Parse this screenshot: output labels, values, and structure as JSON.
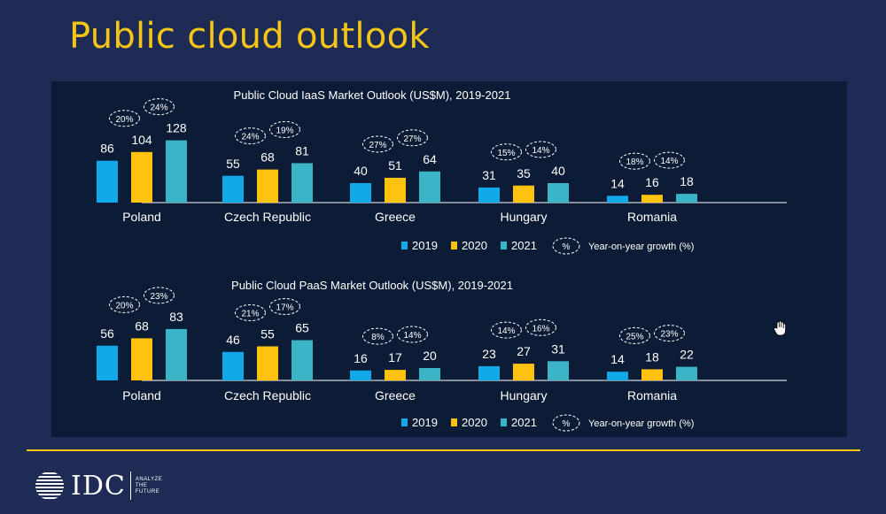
{
  "slide_title": "Public cloud outlook",
  "logo": {
    "name": "IDC",
    "tagline": [
      "ANALYZE",
      "THE",
      "FUTURE"
    ]
  },
  "colors": {
    "background": "#1d2b55",
    "panel": "#0d1c36",
    "title": "#f5c518",
    "2019": "#12a9ea",
    "2020": "#ffc20e",
    "2021": "#3bb4c7"
  },
  "chart_data": [
    {
      "type": "bar",
      "title": "Public Cloud IaaS Market Outlook (US$M), 2019-2021",
      "categories": [
        "Poland",
        "Czech Republic",
        "Greece",
        "Hungary",
        "Romania"
      ],
      "series": [
        {
          "name": "2019",
          "values": [
            86,
            55,
            40,
            31,
            14
          ]
        },
        {
          "name": "2020",
          "values": [
            104,
            68,
            51,
            35,
            16
          ]
        },
        {
          "name": "2021",
          "values": [
            128,
            81,
            64,
            40,
            18
          ]
        }
      ],
      "growth_2020": [
        "20%",
        "24%",
        "27%",
        "15%",
        "18%"
      ],
      "growth_2021": [
        "24%",
        "19%",
        "27%",
        "14%",
        "14%"
      ],
      "legend": {
        "items": [
          "2019",
          "2020",
          "2021"
        ],
        "note_symbol": "%",
        "note": "Year-on-year growth (%)"
      }
    },
    {
      "type": "bar",
      "title": "Public Cloud PaaS Market Outlook (US$M), 2019-2021",
      "categories": [
        "Poland",
        "Czech Republic",
        "Greece",
        "Hungary",
        "Romania"
      ],
      "series": [
        {
          "name": "2019",
          "values": [
            56,
            46,
            16,
            23,
            14
          ]
        },
        {
          "name": "2020",
          "values": [
            68,
            55,
            17,
            27,
            18
          ]
        },
        {
          "name": "2021",
          "values": [
            83,
            65,
            20,
            31,
            22
          ]
        }
      ],
      "growth_2020": [
        "20%",
        "21%",
        "8%",
        "14%",
        "25%"
      ],
      "growth_2021": [
        "23%",
        "17%",
        "14%",
        "16%",
        "23%"
      ],
      "legend": {
        "items": [
          "2019",
          "2020",
          "2021"
        ],
        "note_symbol": "%",
        "note": "Year-on-year growth (%)"
      }
    }
  ]
}
